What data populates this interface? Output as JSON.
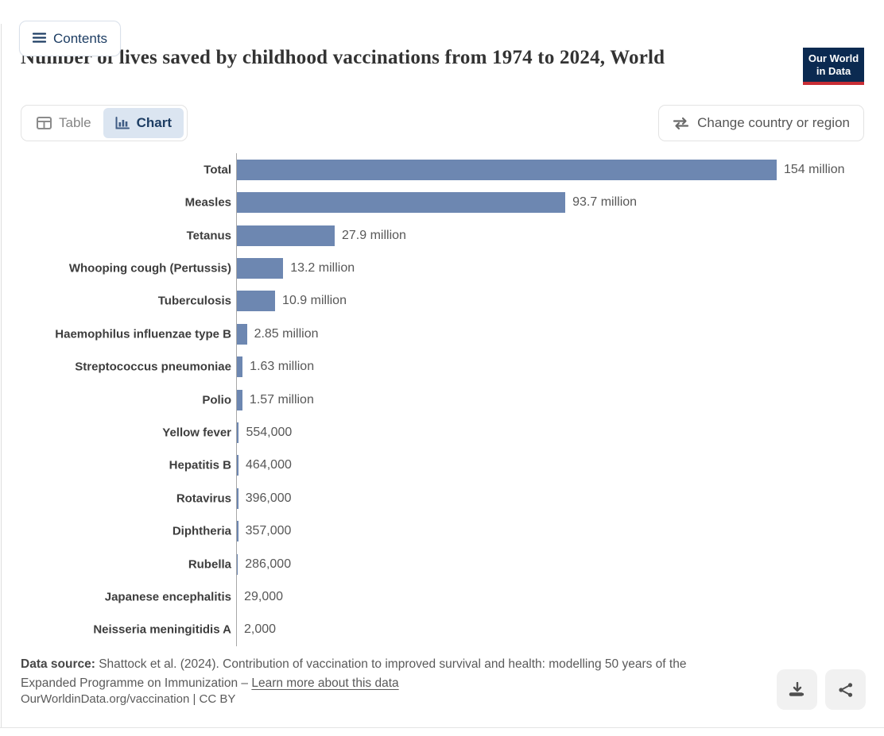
{
  "header": {
    "contents_label": "Contents",
    "title": "Number of lives saved by childhood vaccinations from 1974 to 2024, World",
    "logo": {
      "line1": "Our World",
      "line2": "in Data",
      "navy": "#0b2a51",
      "red": "#c82d35"
    },
    "tabs": [
      {
        "label": "Table",
        "icon": "table-icon",
        "active": false
      },
      {
        "label": "Chart",
        "icon": "bar-chart-icon",
        "active": true
      }
    ],
    "change_region_label": "Change country or region"
  },
  "chart_data": {
    "type": "bar",
    "orientation": "horizontal",
    "title": "Number of lives saved by childhood vaccinations from 1974 to 2024, World",
    "categories": [
      "Total",
      "Measles",
      "Tetanus",
      "Whooping cough (Pertussis)",
      "Tuberculosis",
      "Haemophilus influenzae type B",
      "Streptococcus pneumoniae",
      "Polio",
      "Yellow fever",
      "Hepatitis B",
      "Rotavirus",
      "Diphtheria",
      "Rubella",
      "Japanese encephalitis",
      "Neisseria meningitidis A"
    ],
    "values_millions": [
      154,
      93.7,
      27.9,
      13.2,
      10.9,
      2.85,
      1.63,
      1.57,
      0.554,
      0.464,
      0.396,
      0.357,
      0.286,
      0.029,
      0.002
    ],
    "value_labels": [
      "154 million",
      "93.7 million",
      "27.9 million",
      "13.2 million",
      "10.9 million",
      "2.85 million",
      "1.63 million",
      "1.57 million",
      "554,000",
      "464,000",
      "396,000",
      "357,000",
      "286,000",
      "29,000",
      "2,000"
    ],
    "xlim": [
      0,
      154
    ],
    "bar_color": "#6d87b1",
    "axis_color": "#a8a8a8",
    "grid": false,
    "legend": false
  },
  "footer": {
    "source_label": "Data source:",
    "source_text": " Shattock et al. (2024). Contribution of vaccination to improved survival and health: modelling 50 years of the Expanded Programme on Immunization – ",
    "learn_more_label": "Learn more about this data",
    "attribution": "OurWorldinData.org/vaccination | CC BY"
  },
  "actions": {
    "download": "download-icon",
    "share": "share-icon"
  }
}
